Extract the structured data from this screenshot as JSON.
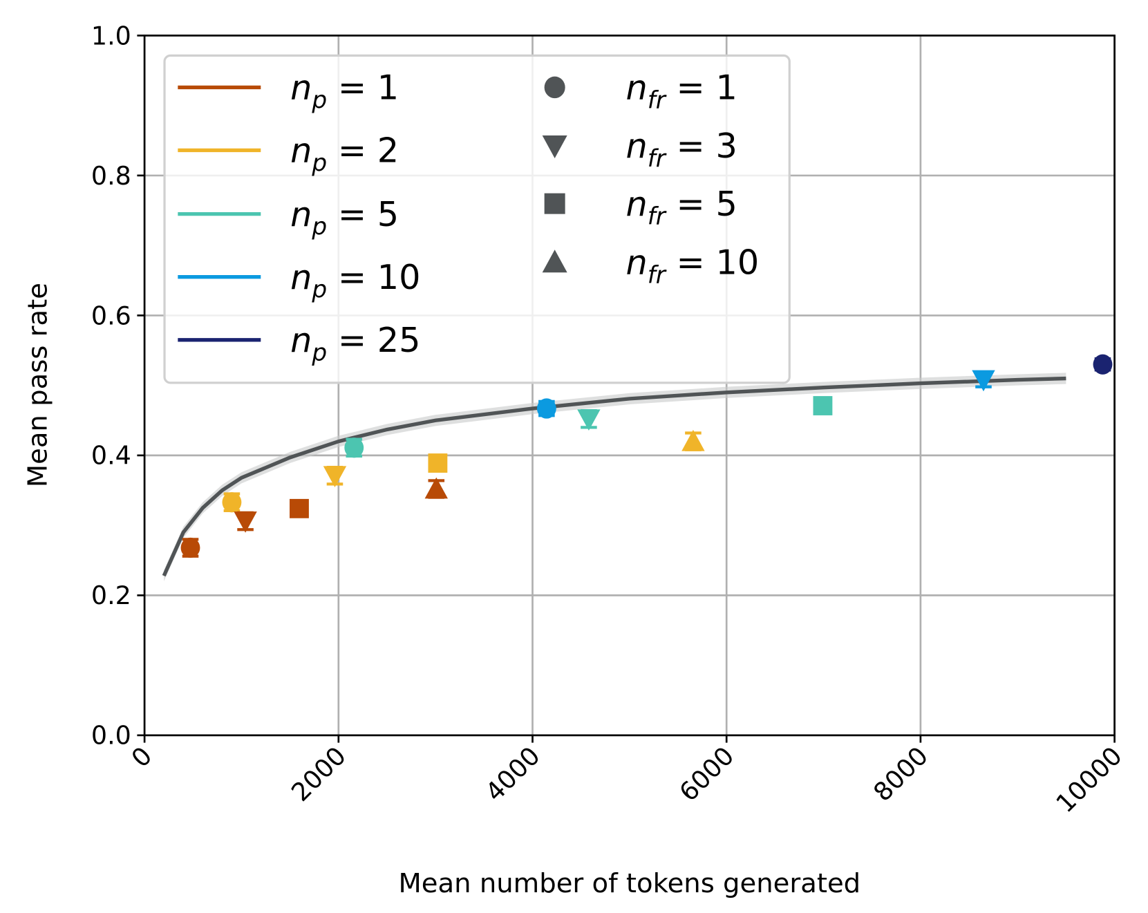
{
  "chart_data": {
    "type": "scatter",
    "xlabel": "Mean number of tokens generated",
    "ylabel": "Mean pass rate",
    "xlim": [
      0,
      10000
    ],
    "ylim": [
      0.0,
      1.0
    ],
    "xticks": [
      "0",
      "2000",
      "4000",
      "6000",
      "8000",
      "10000"
    ],
    "xtick_values": [
      0,
      2000,
      4000,
      6000,
      8000,
      10000
    ],
    "yticks": [
      "0.0",
      "0.2",
      "0.4",
      "0.6",
      "0.8",
      "1.0"
    ],
    "ytick_values": [
      0,
      0.2,
      0.4,
      0.6,
      0.8,
      1.0
    ],
    "grid": true,
    "legend_placement": "top-left",
    "color_legend": [
      {
        "var": "n",
        "sub": "p",
        "eq": " = ",
        "value": "1",
        "color": "#b84a06"
      },
      {
        "var": "n",
        "sub": "p",
        "eq": " = ",
        "value": "2",
        "color": "#f0b429"
      },
      {
        "var": "n",
        "sub": "p",
        "eq": " = ",
        "value": "5",
        "color": "#4cc5b0"
      },
      {
        "var": "n",
        "sub": "p",
        "eq": " = ",
        "value": "10",
        "color": "#0b9ae0"
      },
      {
        "var": "n",
        "sub": "p",
        "eq": " = ",
        "value": "25",
        "color": "#1a2370"
      }
    ],
    "marker_legend": [
      {
        "var": "n",
        "sub": "fr",
        "eq": " = ",
        "value": "1",
        "marker": "circle"
      },
      {
        "var": "n",
        "sub": "fr",
        "eq": " = ",
        "value": "3",
        "marker": "triangle-down"
      },
      {
        "var": "n",
        "sub": "fr",
        "eq": " = ",
        "value": "5",
        "marker": "square"
      },
      {
        "var": "n",
        "sub": "fr",
        "eq": " = ",
        "value": "10",
        "marker": "triangle-up"
      }
    ],
    "points": [
      {
        "np": 1,
        "nfr": 1,
        "x": 473,
        "y": 0.268,
        "err": 0.012
      },
      {
        "np": 2,
        "nfr": 1,
        "x": 900,
        "y": 0.333,
        "err": 0.012
      },
      {
        "np": 1,
        "nfr": 3,
        "x": 1040,
        "y": 0.306,
        "err": 0.012
      },
      {
        "np": 1,
        "nfr": 5,
        "x": 1595,
        "y": 0.324,
        "err": 0.0
      },
      {
        "np": 2,
        "nfr": 3,
        "x": 1962,
        "y": 0.371,
        "err": 0.012
      },
      {
        "np": 5,
        "nfr": 1,
        "x": 2160,
        "y": 0.411,
        "err": 0.012
      },
      {
        "np": 2,
        "nfr": 5,
        "x": 3023,
        "y": 0.389,
        "err": 0.0
      },
      {
        "np": 1,
        "nfr": 10,
        "x": 3008,
        "y": 0.352,
        "err": 0.012
      },
      {
        "np": 10,
        "nfr": 1,
        "x": 4145,
        "y": 0.467,
        "err": 0.01
      },
      {
        "np": 5,
        "nfr": 3,
        "x": 4580,
        "y": 0.452,
        "err": 0.012
      },
      {
        "np": 2,
        "nfr": 10,
        "x": 5656,
        "y": 0.42,
        "err": 0.012
      },
      {
        "np": 5,
        "nfr": 5,
        "x": 6992,
        "y": 0.471,
        "err": 0.0
      },
      {
        "np": 10,
        "nfr": 3,
        "x": 8649,
        "y": 0.508,
        "err": 0.01
      },
      {
        "np": 25,
        "nfr": 1,
        "x": 9878,
        "y": 0.53,
        "err": 0.008
      }
    ],
    "fit_curve": {
      "color": "#505456",
      "band": 0.008,
      "x": [
        200,
        400,
        600,
        800,
        1000,
        1500,
        2000,
        2500,
        3000,
        4000,
        5000,
        6000,
        7000,
        8000,
        9000,
        9500
      ],
      "y": [
        0.228,
        0.29,
        0.325,
        0.35,
        0.368,
        0.397,
        0.42,
        0.437,
        0.45,
        0.467,
        0.481,
        0.49,
        0.497,
        0.503,
        0.508,
        0.51
      ]
    }
  }
}
